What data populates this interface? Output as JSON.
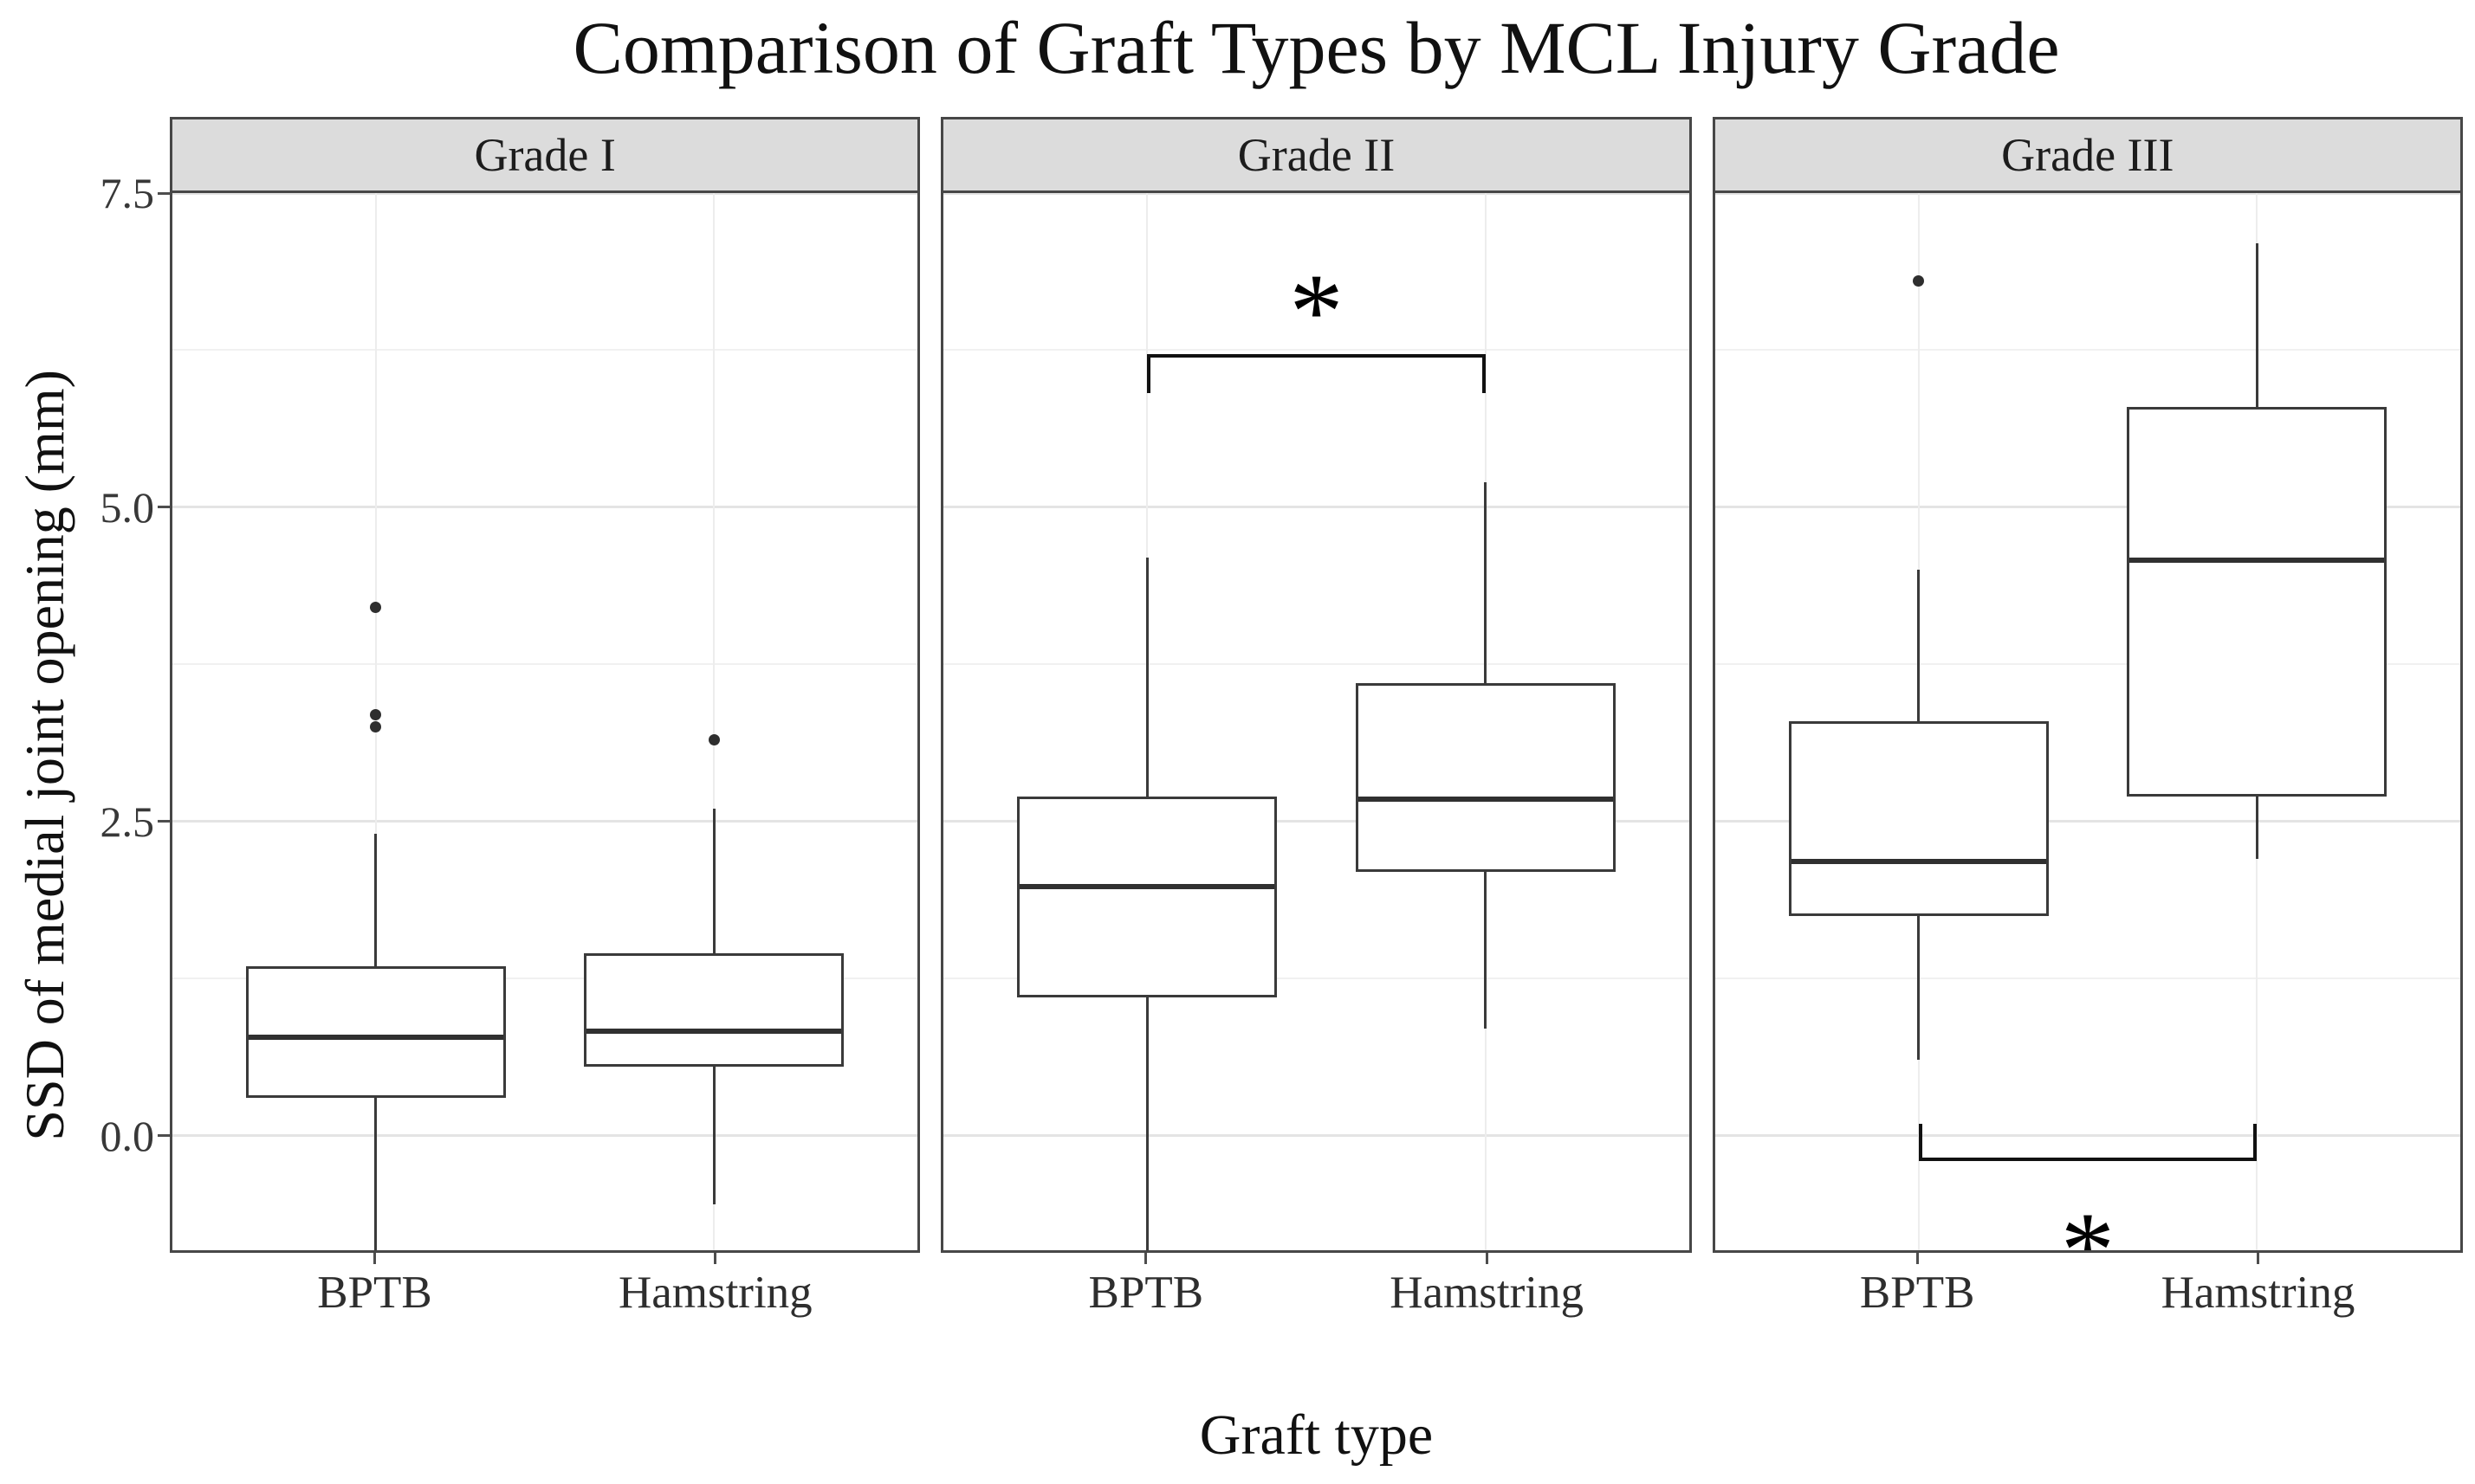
{
  "chart_data": {
    "type": "boxplot",
    "title": "Comparison of Graft Types by MCL Injury Grade",
    "xlabel": "Graft type",
    "ylabel": "SSD of medial joint opening (mm)",
    "ylim": [
      -1.45,
      7.5
    ],
    "y_ticks": [
      0.0,
      2.5,
      5.0,
      7.5
    ],
    "y_tick_labels": [
      "0.0",
      "2.5",
      "5.0",
      "7.5"
    ],
    "y_minor_gridlines": [
      -1.25,
      1.25,
      3.75,
      6.25
    ],
    "grid": "on",
    "categories": [
      "BPTB",
      "Hamstring"
    ],
    "facets": [
      {
        "label": "Grade I",
        "boxes": [
          {
            "category": "BPTB",
            "whisker_low": -1.05,
            "q1": 0.3,
            "median": 0.8,
            "q3": 1.35,
            "whisker_high": 2.4,
            "outliers": [
              3.25,
              3.35,
              4.2
            ]
          },
          {
            "category": "Hamstring",
            "whisker_low": -0.55,
            "q1": 0.55,
            "median": 0.85,
            "q3": 1.45,
            "whisker_high": 2.6,
            "outliers": [
              3.15
            ]
          }
        ],
        "significance": null
      },
      {
        "label": "Grade II",
        "boxes": [
          {
            "category": "BPTB",
            "whisker_low": -1.1,
            "q1": 1.1,
            "median": 2.0,
            "q3": 2.7,
            "whisker_high": 4.6,
            "outliers": []
          },
          {
            "category": "Hamstring",
            "whisker_low": 0.85,
            "q1": 2.1,
            "median": 2.7,
            "q3": 3.6,
            "whisker_high": 5.2,
            "outliers": []
          }
        ],
        "significance": {
          "label": "*",
          "between": [
            "BPTB",
            "Hamstring"
          ],
          "position": "top",
          "bar_y": 6.22,
          "tick_length": 0.31,
          "symbol_y": 6.72
        }
      },
      {
        "label": "Grade III",
        "boxes": [
          {
            "category": "BPTB",
            "whisker_low": 0.6,
            "q1": 1.75,
            "median": 2.2,
            "q3": 3.3,
            "whisker_high": 4.5,
            "outliers": [
              6.8
            ]
          },
          {
            "category": "Hamstring",
            "whisker_low": 2.2,
            "q1": 2.7,
            "median": 4.6,
            "q3": 5.8,
            "whisker_high": 7.1,
            "outliers": []
          }
        ],
        "significance": {
          "label": "*",
          "between": [
            "BPTB",
            "Hamstring"
          ],
          "position": "bottom",
          "bar_y": -0.2,
          "tick_length": 0.29,
          "symbol_y": -0.75
        }
      }
    ],
    "colors": {
      "box_stroke": "#3a3a3a",
      "median": "#303030",
      "panel_border": "#474747",
      "strip_fill": "#dcdcdc",
      "grid_major": "#e4e4e4",
      "grid_minor": "#f1f1f1",
      "bracket": "#111111",
      "text": "#1a1a1a"
    }
  }
}
